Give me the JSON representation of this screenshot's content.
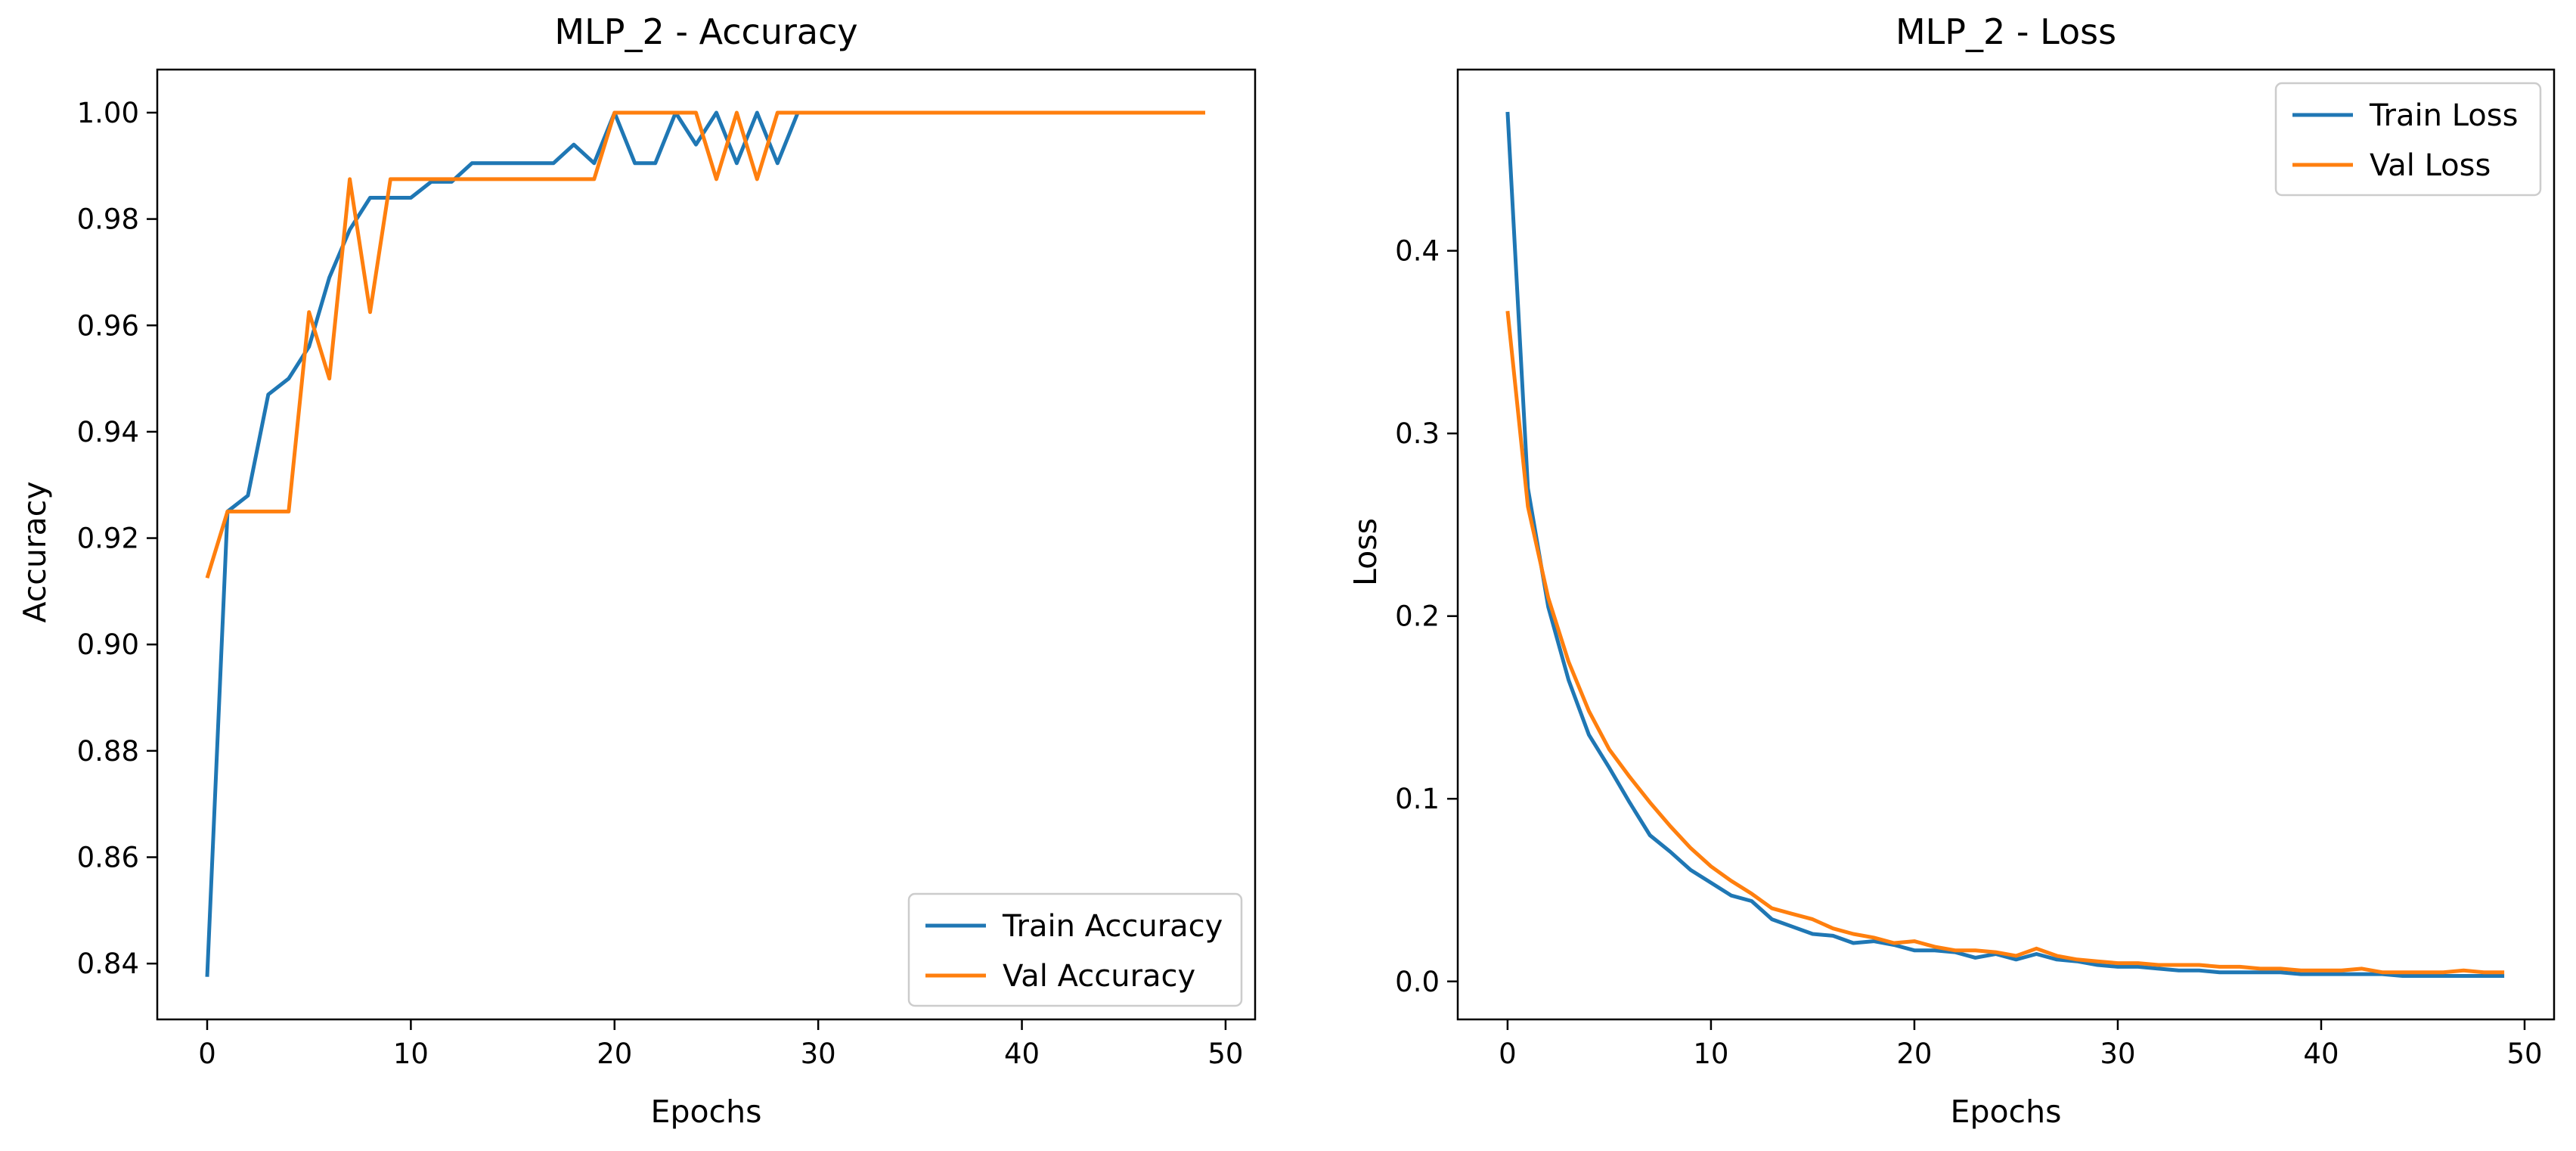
{
  "chart_data": [
    {
      "type": "line",
      "title": "MLP_2 - Accuracy",
      "xlabel": "Epochs",
      "ylabel": "Accuracy",
      "xlim": [
        -2.45,
        51.45
      ],
      "ylim": [
        0.8295,
        1.0081
      ],
      "xticks": [
        0,
        10,
        20,
        30,
        40,
        50
      ],
      "yticks": [
        0.84,
        0.86,
        0.88,
        0.9,
        0.92,
        0.94,
        0.96,
        0.98,
        1.0
      ],
      "ytick_labels": [
        "0.84",
        "0.86",
        "0.88",
        "0.90",
        "0.92",
        "0.94",
        "0.96",
        "0.98",
        "1.00"
      ],
      "grid": false,
      "legend_position": "lower-right",
      "x": [
        0,
        1,
        2,
        3,
        4,
        5,
        6,
        7,
        8,
        9,
        10,
        11,
        12,
        13,
        14,
        15,
        16,
        17,
        18,
        19,
        20,
        21,
        22,
        23,
        24,
        25,
        26,
        27,
        28,
        29,
        30,
        31,
        32,
        33,
        34,
        35,
        36,
        37,
        38,
        39,
        40,
        41,
        42,
        43,
        44,
        45,
        46,
        47,
        48,
        49
      ],
      "series": [
        {
          "name": "Train Accuracy",
          "color": "#1f77b4",
          "values": [
            0.8375,
            0.925,
            0.928,
            0.947,
            0.95,
            0.956,
            0.969,
            0.978,
            0.984,
            0.984,
            0.984,
            0.987,
            0.987,
            0.9905,
            0.9905,
            0.9905,
            0.9905,
            0.9905,
            0.994,
            0.9905,
            1.0,
            0.9905,
            0.9905,
            1.0,
            0.994,
            1.0,
            0.9905,
            1.0,
            0.9905,
            1.0,
            1.0,
            1.0,
            1.0,
            1.0,
            1.0,
            1.0,
            1.0,
            1.0,
            1.0,
            1.0,
            1.0,
            1.0,
            1.0,
            1.0,
            1.0,
            1.0,
            1.0,
            1.0,
            1.0,
            1.0
          ]
        },
        {
          "name": "Val Accuracy",
          "color": "#ff7f0e",
          "values": [
            0.9125,
            0.925,
            0.925,
            0.925,
            0.925,
            0.9625,
            0.95,
            0.9875,
            0.9625,
            0.9875,
            0.9875,
            0.9875,
            0.9875,
            0.9875,
            0.9875,
            0.9875,
            0.9875,
            0.9875,
            0.9875,
            0.9875,
            1.0,
            1.0,
            1.0,
            1.0,
            1.0,
            0.9875,
            1.0,
            0.9875,
            1.0,
            1.0,
            1.0,
            1.0,
            1.0,
            1.0,
            1.0,
            1.0,
            1.0,
            1.0,
            1.0,
            1.0,
            1.0,
            1.0,
            1.0,
            1.0,
            1.0,
            1.0,
            1.0,
            1.0,
            1.0,
            1.0
          ]
        }
      ]
    },
    {
      "type": "line",
      "title": "MLP_2 - Loss",
      "xlabel": "Epochs",
      "ylabel": "Loss",
      "xlim": [
        -2.45,
        51.45
      ],
      "ylim": [
        -0.0208,
        0.4992
      ],
      "xticks": [
        0,
        10,
        20,
        30,
        40,
        50
      ],
      "yticks": [
        0.0,
        0.1,
        0.2,
        0.3,
        0.4
      ],
      "ytick_labels": [
        "0.0",
        "0.1",
        "0.2",
        "0.3",
        "0.4"
      ],
      "grid": false,
      "legend_position": "top-right",
      "x": [
        0,
        1,
        2,
        3,
        4,
        5,
        6,
        7,
        8,
        9,
        10,
        11,
        12,
        13,
        14,
        15,
        16,
        17,
        18,
        19,
        20,
        21,
        22,
        23,
        24,
        25,
        26,
        27,
        28,
        29,
        30,
        31,
        32,
        33,
        34,
        35,
        36,
        37,
        38,
        39,
        40,
        41,
        42,
        43,
        44,
        45,
        46,
        47,
        48,
        49
      ],
      "series": [
        {
          "name": "Train Loss",
          "color": "#1f77b4",
          "values": [
            0.476,
            0.27,
            0.205,
            0.165,
            0.135,
            0.117,
            0.098,
            0.08,
            0.071,
            0.061,
            0.054,
            0.047,
            0.044,
            0.034,
            0.03,
            0.026,
            0.025,
            0.021,
            0.022,
            0.02,
            0.017,
            0.017,
            0.016,
            0.013,
            0.015,
            0.012,
            0.015,
            0.012,
            0.011,
            0.009,
            0.008,
            0.008,
            0.007,
            0.006,
            0.006,
            0.005,
            0.005,
            0.005,
            0.005,
            0.004,
            0.004,
            0.004,
            0.004,
            0.004,
            0.003,
            0.003,
            0.003,
            0.003,
            0.003,
            0.003
          ]
        },
        {
          "name": "Val Loss",
          "color": "#ff7f0e",
          "values": [
            0.367,
            0.26,
            0.21,
            0.175,
            0.148,
            0.127,
            0.112,
            0.098,
            0.085,
            0.073,
            0.063,
            0.055,
            0.048,
            0.04,
            0.037,
            0.034,
            0.029,
            0.026,
            0.024,
            0.021,
            0.022,
            0.019,
            0.017,
            0.017,
            0.016,
            0.014,
            0.018,
            0.014,
            0.012,
            0.011,
            0.01,
            0.01,
            0.009,
            0.009,
            0.009,
            0.008,
            0.008,
            0.007,
            0.007,
            0.006,
            0.006,
            0.006,
            0.007,
            0.005,
            0.005,
            0.005,
            0.005,
            0.006,
            0.005,
            0.005
          ]
        }
      ]
    }
  ]
}
